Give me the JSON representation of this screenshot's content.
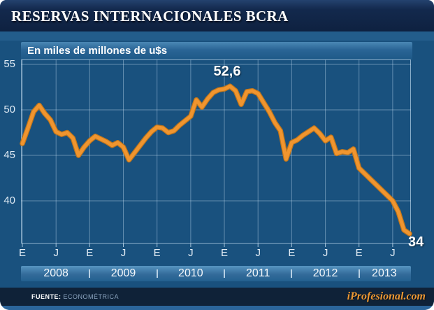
{
  "header": {
    "title": "RESERVAS INTERNACIONALES BCRA"
  },
  "chart": {
    "subtitle": "En miles de millones de u$s",
    "y_ticks": [
      55,
      50,
      45,
      40
    ],
    "x_tick_labels": [
      "E",
      "J",
      "E",
      "J",
      "E",
      "J",
      "E",
      "J",
      "E",
      "J",
      "E",
      "J"
    ],
    "years": [
      "2008",
      "2009",
      "2010",
      "2011",
      "2012",
      "2013"
    ],
    "annotations": {
      "peak": "52,6",
      "last": "34"
    },
    "colors": {
      "line": "#F0952F",
      "background": "#19517E",
      "header_bg": "#13294D",
      "footer_bg": "#0F2238",
      "year_band": "#4C88B4",
      "grid": "#C7E0F2"
    }
  },
  "chart_data": {
    "type": "line",
    "title": "Reservas Internacionales BCRA",
    "units": "miles de millones de u$s",
    "xlabel": "",
    "ylabel": "miles de millones de u$s",
    "ylim": [
      35,
      56
    ],
    "y_ticks": [
      40,
      45,
      50,
      55
    ],
    "grid": true,
    "legend": false,
    "x": [
      "2008-01",
      "2008-02",
      "2008-03",
      "2008-04",
      "2008-05",
      "2008-06",
      "2008-07",
      "2008-08",
      "2008-09",
      "2008-10",
      "2008-11",
      "2008-12",
      "2009-01",
      "2009-02",
      "2009-03",
      "2009-04",
      "2009-05",
      "2009-06",
      "2009-07",
      "2009-08",
      "2009-09",
      "2009-10",
      "2009-11",
      "2009-12",
      "2010-01",
      "2010-02",
      "2010-03",
      "2010-04",
      "2010-05",
      "2010-06",
      "2010-07",
      "2010-08",
      "2010-09",
      "2010-10",
      "2010-11",
      "2010-12",
      "2011-01",
      "2011-02",
      "2011-03",
      "2011-04",
      "2011-05",
      "2011-06",
      "2011-07",
      "2011-08",
      "2011-09",
      "2011-10",
      "2011-11",
      "2011-12",
      "2012-01",
      "2012-02",
      "2012-03",
      "2012-04",
      "2012-05",
      "2012-06",
      "2012-07",
      "2012-08",
      "2012-09",
      "2012-10",
      "2012-11",
      "2012-12",
      "2013-01",
      "2013-02",
      "2013-03",
      "2013-04",
      "2013-05",
      "2013-06",
      "2013-07",
      "2013-08",
      "2013-09",
      "2013-10"
    ],
    "values": [
      46.3,
      48.0,
      49.8,
      50.5,
      49.6,
      48.9,
      47.6,
      47.3,
      47.5,
      46.9,
      45.0,
      45.9,
      46.6,
      47.1,
      46.8,
      46.5,
      46.1,
      46.4,
      45.9,
      44.5,
      45.3,
      46.1,
      46.9,
      47.6,
      48.1,
      48.0,
      47.5,
      47.7,
      48.3,
      48.8,
      49.3,
      51.1,
      50.3,
      51.2,
      51.9,
      52.2,
      52.3,
      52.6,
      52.1,
      50.6,
      52.0,
      52.1,
      51.8,
      50.8,
      49.8,
      48.6,
      47.7,
      44.6,
      46.4,
      46.7,
      47.2,
      47.6,
      48.0,
      47.4,
      46.6,
      47.0,
      45.2,
      45.4,
      45.3,
      45.7,
      43.6,
      43.0,
      42.4,
      41.8,
      41.2,
      40.6,
      40.0,
      38.8,
      36.8,
      34.0
    ],
    "annotations": [
      {
        "x": "2011-02",
        "value": 52.6,
        "label": "52,6"
      },
      {
        "x": "2013-10",
        "value": 34.0,
        "label": "34"
      }
    ]
  },
  "footer": {
    "source_label": "FUENTE:",
    "source_value": "ECONOMÉTRICA",
    "brand": "iProfesional.com"
  }
}
